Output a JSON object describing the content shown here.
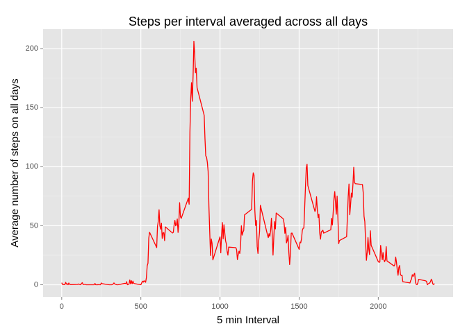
{
  "chart_data": {
    "type": "line",
    "title": "Steps per interval averaged across all days",
    "x_label": "5 min Interval",
    "y_label": "Average number of steps on all days",
    "color": "#ff0000",
    "xlim": [
      -117.75,
      2472.75
    ],
    "ylim": [
      -10.3,
      216.5
    ],
    "xticks": [
      0,
      500,
      1000,
      1500,
      2000
    ],
    "yticks": [
      0,
      50,
      100,
      150,
      200
    ],
    "xminor": [
      250,
      750,
      1250,
      1750,
      2250
    ],
    "yminor": [
      25,
      75,
      125,
      175
    ],
    "grid": true,
    "x": [
      0,
      5,
      10,
      15,
      20,
      25,
      30,
      35,
      40,
      45,
      50,
      55,
      100,
      105,
      110,
      115,
      120,
      125,
      130,
      135,
      140,
      145,
      150,
      155,
      200,
      205,
      210,
      215,
      220,
      225,
      230,
      235,
      240,
      245,
      250,
      255,
      300,
      305,
      310,
      315,
      320,
      325,
      330,
      335,
      340,
      345,
      350,
      355,
      400,
      405,
      410,
      415,
      420,
      425,
      430,
      435,
      440,
      445,
      450,
      455,
      500,
      505,
      510,
      515,
      520,
      525,
      530,
      535,
      540,
      545,
      550,
      555,
      600,
      605,
      610,
      615,
      620,
      625,
      630,
      635,
      640,
      645,
      650,
      655,
      700,
      705,
      710,
      715,
      720,
      725,
      730,
      735,
      740,
      745,
      750,
      755,
      800,
      805,
      810,
      815,
      820,
      825,
      830,
      835,
      840,
      845,
      850,
      855,
      900,
      905,
      910,
      915,
      920,
      925,
      930,
      935,
      940,
      945,
      950,
      955,
      1000,
      1005,
      1010,
      1015,
      1020,
      1025,
      1030,
      1035,
      1040,
      1045,
      1050,
      1055,
      1100,
      1105,
      1110,
      1115,
      1120,
      1125,
      1130,
      1135,
      1140,
      1145,
      1150,
      1155,
      1200,
      1205,
      1210,
      1215,
      1220,
      1225,
      1230,
      1235,
      1240,
      1245,
      1250,
      1255,
      1300,
      1305,
      1310,
      1315,
      1320,
      1325,
      1330,
      1335,
      1340,
      1345,
      1350,
      1355,
      1400,
      1405,
      1410,
      1415,
      1420,
      1425,
      1430,
      1435,
      1440,
      1445,
      1450,
      1455,
      1500,
      1505,
      1510,
      1515,
      1520,
      1525,
      1530,
      1535,
      1540,
      1545,
      1550,
      1555,
      1600,
      1605,
      1610,
      1615,
      1620,
      1625,
      1630,
      1635,
      1640,
      1645,
      1650,
      1655,
      1700,
      1705,
      1710,
      1715,
      1720,
      1725,
      1730,
      1735,
      1740,
      1745,
      1750,
      1755,
      1800,
      1805,
      1810,
      1815,
      1820,
      1825,
      1830,
      1835,
      1840,
      1845,
      1850,
      1855,
      1900,
      1905,
      1910,
      1915,
      1920,
      1925,
      1930,
      1935,
      1940,
      1945,
      1950,
      1955,
      2000,
      2005,
      2010,
      2015,
      2020,
      2025,
      2030,
      2035,
      2040,
      2045,
      2050,
      2055,
      2100,
      2105,
      2110,
      2115,
      2120,
      2125,
      2130,
      2135,
      2140,
      2145,
      2150,
      2155,
      2200,
      2205,
      2210,
      2215,
      2220,
      2225,
      2230,
      2235,
      2240,
      2245,
      2250,
      2255,
      2300,
      2305,
      2310,
      2315,
      2320,
      2325,
      2330,
      2335,
      2340,
      2345,
      2350,
      2355
    ],
    "values": [
      1.7,
      0.3,
      0.1,
      0.2,
      0.1,
      2.1,
      0.5,
      0.9,
      0,
      1.5,
      0.3,
      0.1,
      0.3,
      0.7,
      0.2,
      0.3,
      0,
      1.1,
      1.8,
      0.2,
      0.2,
      0.4,
      0.3,
      0,
      0,
      0,
      1.1,
      0,
      0,
      0.1,
      0,
      0.2,
      0,
      0,
      1.5,
      0.9,
      0,
      0,
      0,
      0,
      0.2,
      0.6,
      1.6,
      0.6,
      0.5,
      0.1,
      0,
      0,
      1.2,
      0.9,
      2.6,
      0,
      0.3,
      0.4,
      4.1,
      0.7,
      3.5,
      0.8,
      3.1,
      1.1,
      0,
      1.6,
      3,
      2.2,
      3.3,
      3,
      2.1,
      6.1,
      16,
      18.3,
      39.5,
      44.5,
      31.5,
      49.3,
      53.8,
      63.5,
      50,
      47.1,
      52.2,
      39.3,
      44,
      44.2,
      37.4,
      49,
      43.8,
      44.4,
      50.5,
      54.5,
      49.9,
      51,
      55.7,
      44.3,
      52.3,
      69.5,
      57.8,
      56.2,
      73.4,
      68.2,
      129.4,
      157.5,
      171.2,
      155.4,
      177.3,
      206.2,
      195.9,
      179.6,
      183.4,
      167,
      143.5,
      124,
      109.1,
      108.1,
      103.7,
      96,
      66.2,
      45.2,
      24.8,
      38.8,
      35,
      21.1,
      40.6,
      27,
      42.4,
      52.7,
      38.9,
      50.8,
      44.3,
      37.4,
      34.7,
      28.3,
      25.1,
      31.9,
      31.4,
      29.7,
      21.3,
      25.5,
      28.4,
      26.5,
      33.4,
      50,
      42,
      44.6,
      46,
      59.2,
      63.9,
      87.7,
      94.8,
      92.8,
      63.4,
      50.2,
      54.5,
      32.4,
      26.5,
      37.7,
      45.1,
      67.3,
      42.3,
      39.9,
      43.3,
      41,
      46.2,
      56.4,
      42.8,
      25.1,
      40,
      53.5,
      47.3,
      60.8,
      55.8,
      52,
      43.6,
      48.7,
      35.5,
      37.5,
      41.8,
      27.5,
      17.1,
      26.1,
      43.6,
      43.8,
      30,
      36.1,
      35.5,
      38.8,
      46,
      47.8,
      48.1,
      65.3,
      82.9,
      98.7,
      102.1,
      84,
      62.1,
      64.1,
      74.5,
      63.2,
      56.9,
      59.8,
      43.9,
      38.6,
      44.7,
      45.5,
      46.2,
      43.7,
      46.6,
      56.3,
      50.7,
      61.2,
      72.7,
      78.9,
      68.9,
      59.7,
      75.1,
      56.5,
      34.8,
      37.5,
      40.7,
      58,
      74.7,
      85.3,
      59.3,
      67.8,
      77.7,
      74.2,
      85.3,
      99.5,
      86.6,
      85.6,
      84.9,
      77.8,
      58,
      53.4,
      36.3,
      20.7,
      27.4,
      40,
      30.2,
      25.5,
      45.7,
      33.5,
      19.6,
      19,
      19.3,
      33.3,
      26.8,
      21.2,
      27.3,
      21.3,
      19.5,
      21.3,
      32.3,
      20.2,
      15.9,
      17.2,
      23.5,
      19.2,
      12.5,
      8,
      14.7,
      16.3,
      8.7,
      7.8,
      8.1,
      2.6,
      1.5,
      3.7,
      4.8,
      8.5,
      7.1,
      8.7,
      9.8,
      2.2,
      0.3,
      0.1,
      1.6,
      4.6,
      3.3,
      2.8,
      0,
      0.8,
      1,
      1.6,
      2.6,
      4.7,
      3.3,
      0.6,
      0.2,
      1.1
    ]
  }
}
